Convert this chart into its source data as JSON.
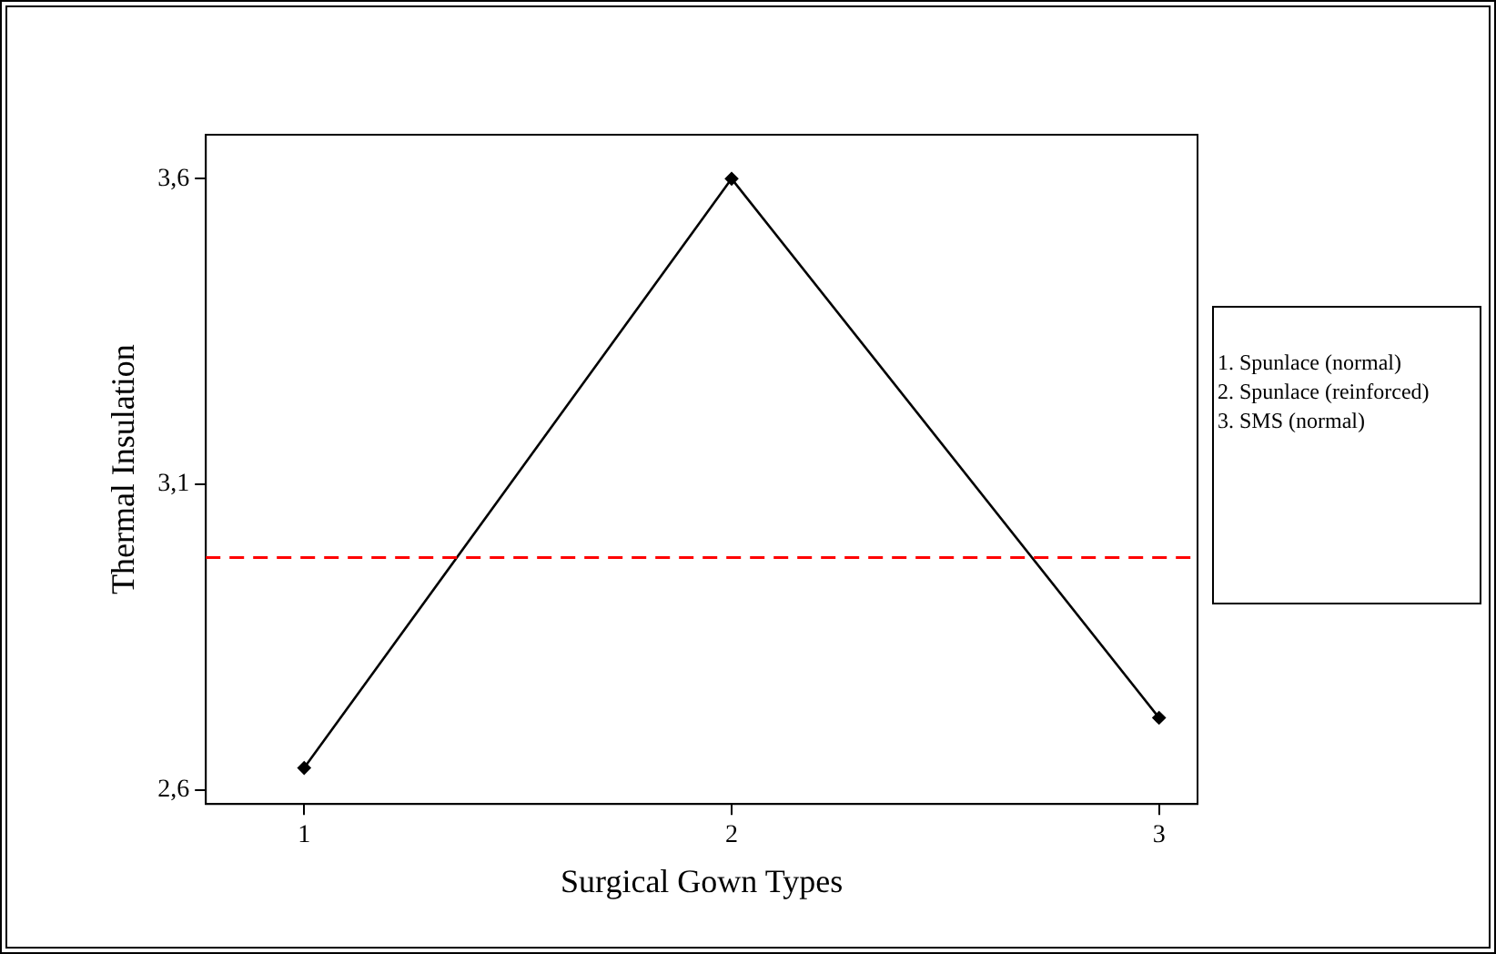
{
  "chart_data": {
    "type": "line",
    "xlabel": "Surgical Gown Types",
    "ylabel": "Thermal Insulation",
    "x": [
      1,
      2,
      3
    ],
    "series": [
      {
        "color": "#000000",
        "values": [
          2.636,
          3.6,
          2.718
        ]
      }
    ],
    "xlim": [
      0.77,
      3.09
    ],
    "xticks": [
      1,
      2,
      3
    ],
    "ylim": [
      2.577,
      3.672
    ],
    "yticks": [
      {
        "value": 2.6,
        "label": "2,6"
      },
      {
        "value": 3.1,
        "label": "3,1"
      },
      {
        "value": 3.6,
        "label": "3,6"
      }
    ],
    "ref_lines": [
      {
        "axis": "y",
        "value": 2.98,
        "color": "#ff0000",
        "line_style": "dashed"
      }
    ],
    "annotations": [
      "1. Spunlace (normal)",
      "2. Spunlace (reinforced)",
      "3. SMS (normal)"
    ],
    "grid": false,
    "legend": false,
    "marker": "diamond",
    "line_style": "solid"
  }
}
